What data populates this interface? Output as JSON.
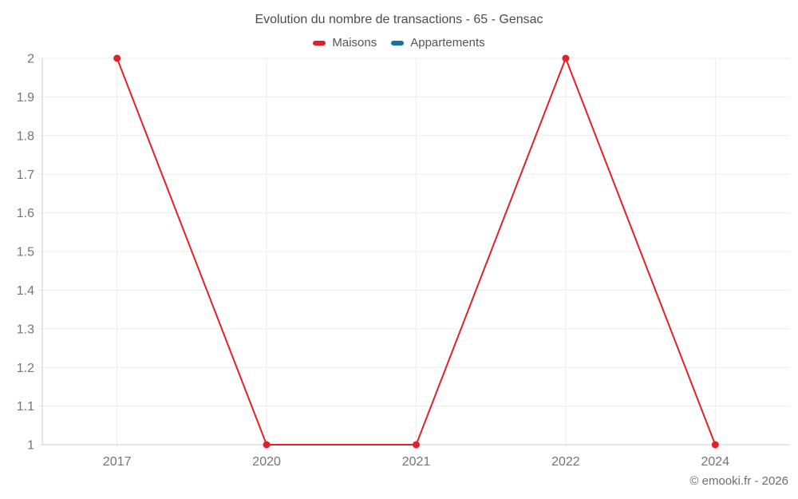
{
  "chart_data": {
    "type": "line",
    "title": "Evolution du nombre de transactions - 65 - Gensac",
    "categories": [
      "2017",
      "2020",
      "2021",
      "2022",
      "2024"
    ],
    "series": [
      {
        "name": "Maisons",
        "color": "#e02228",
        "values": [
          2,
          1,
          1,
          2,
          1
        ]
      },
      {
        "name": "Appartements",
        "color": "#17709e",
        "values": []
      }
    ],
    "ylim": [
      1,
      2
    ],
    "yticks": [
      1,
      1.1,
      1.2,
      1.3,
      1.4,
      1.5,
      1.6,
      1.7,
      1.8,
      1.9,
      2
    ],
    "ytick_labels": [
      "1",
      "1.1",
      "1.2",
      "1.3",
      "1.4",
      "1.5",
      "1.6",
      "1.7",
      "1.8",
      "1.9",
      "2"
    ],
    "xlabel": "",
    "ylabel": "",
    "grid": true,
    "legend_position": "top"
  },
  "footer": {
    "copyright": "© emooki.fr - 2026"
  },
  "colors": {
    "background": "#ffffff",
    "grid": "#ececec",
    "axis": "#cccccc",
    "tick_label": "#757575",
    "title": "#4c4c4c",
    "legend_text": "#555555",
    "copyright": "#6e6e6e"
  }
}
